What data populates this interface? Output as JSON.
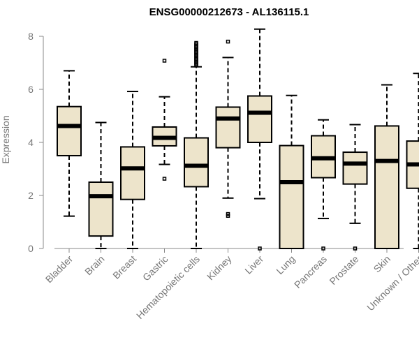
{
  "chart_data": {
    "type": "boxplot",
    "title": "ENSG00000212673 - AL136115.1",
    "xlabel": "",
    "ylabel": "Expression",
    "ylim": [
      0,
      8.3
    ],
    "yticks": [
      0,
      2,
      4,
      6,
      8
    ],
    "box_color": "#ede4cb",
    "categories": [
      "Bladder",
      "Brain",
      "Breast",
      "Gastric",
      "Hematopoietic cells",
      "Kidney",
      "Liver",
      "Lung",
      "Pancreas",
      "Prostate",
      "Skin",
      "Unknown / Other"
    ],
    "boxes": [
      {
        "min": 1.22,
        "q1": 3.5,
        "median": 4.62,
        "q3": 5.35,
        "max": 6.7,
        "outliers": []
      },
      {
        "min": 0.0,
        "q1": 0.47,
        "median": 1.97,
        "q3": 2.5,
        "max": 4.75,
        "outliers": []
      },
      {
        "min": 0.0,
        "q1": 1.85,
        "median": 3.02,
        "q3": 3.83,
        "max": 5.92,
        "outliers": []
      },
      {
        "min": 3.17,
        "q1": 3.87,
        "median": 4.17,
        "q3": 4.58,
        "max": 5.72,
        "outliers": [
          2.63,
          7.08
        ]
      },
      {
        "min": 0.0,
        "q1": 2.33,
        "median": 3.12,
        "q3": 4.17,
        "max": 6.85,
        "outliers": [
          6.9,
          6.95,
          7.0,
          7.05,
          7.1,
          7.15,
          7.2,
          7.25,
          7.3,
          7.35,
          7.4,
          7.45,
          7.5,
          7.55,
          7.6,
          7.65,
          7.7,
          7.75
        ]
      },
      {
        "min": 1.9,
        "q1": 3.8,
        "median": 4.9,
        "q3": 5.33,
        "max": 7.2,
        "outliers": [
          1.23,
          1.3,
          7.8
        ]
      },
      {
        "min": 1.88,
        "q1": 4.0,
        "median": 5.12,
        "q3": 5.75,
        "max": 8.27,
        "outliers": [
          0.0
        ]
      },
      {
        "min": 0.0,
        "q1": 0.0,
        "median": 2.5,
        "q3": 3.88,
        "max": 5.77,
        "outliers": []
      },
      {
        "min": 1.13,
        "q1": 2.67,
        "median": 3.4,
        "q3": 4.25,
        "max": 4.85,
        "outliers": [
          0.0
        ]
      },
      {
        "min": 0.95,
        "q1": 2.43,
        "median": 3.2,
        "q3": 3.63,
        "max": 4.67,
        "outliers": [
          0.0
        ]
      },
      {
        "min": 0.0,
        "q1": 0.0,
        "median": 3.3,
        "q3": 4.62,
        "max": 6.17,
        "outliers": []
      },
      {
        "min": 0.0,
        "q1": 2.27,
        "median": 3.17,
        "q3": 4.05,
        "max": 6.6,
        "outliers": []
      }
    ]
  }
}
